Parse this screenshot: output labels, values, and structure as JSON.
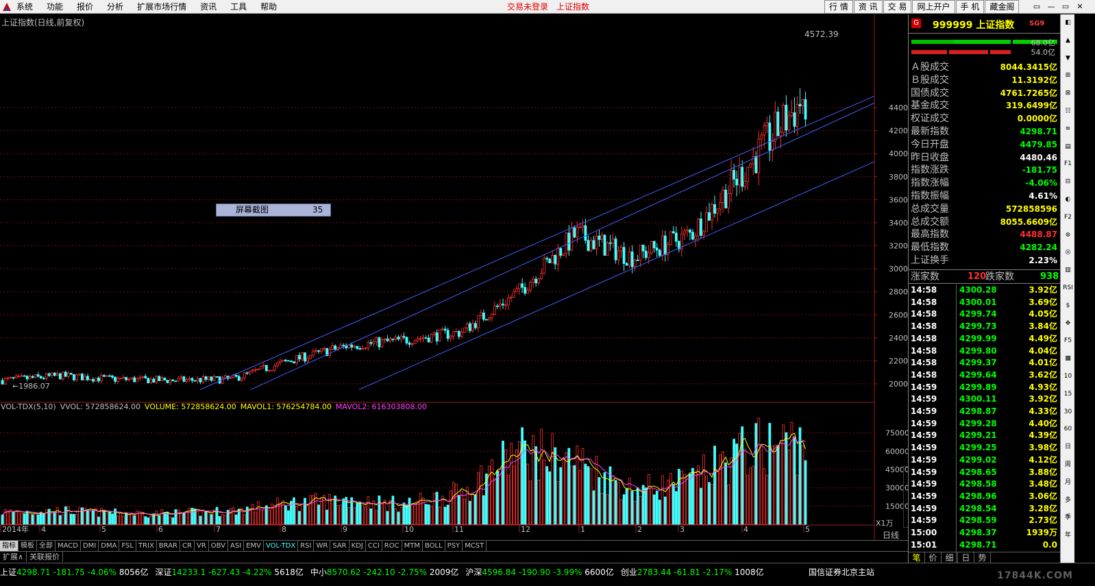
{
  "menubar": {
    "items": [
      "系统",
      "功能",
      "报价",
      "分析",
      "扩展市场行情",
      "资讯",
      "工具",
      "帮助"
    ],
    "status": [
      "交易未登录",
      "上证指数"
    ],
    "right_tabs": [
      "行 情",
      "资 讯",
      "交 易",
      "网上开户",
      "手 机",
      "藏金阁"
    ],
    "window_controls": [
      "▭",
      "—",
      "▭",
      "✕"
    ]
  },
  "chart": {
    "title": "上证指数(日线,前复权)",
    "peak_label": "4572.39",
    "low_label": "1986.07",
    "screenshot_tip": {
      "label": "屏幕截图",
      "count": "35"
    },
    "x_unit": "X1万",
    "period": "日线",
    "up_color": "#ff3030",
    "down_color": "#40ffff",
    "channel_color": "#4060ff"
  },
  "volume_header": {
    "name": "VOL-TDX(5,10)",
    "vvol": "VVOL: 572858624.00",
    "volume": "VOLUME: 572858624.00",
    "mavol1": "MAVOL1: 576254784.00",
    "mavol2": "MAVOL2: 616303808.00"
  },
  "chart_data": {
    "type": "candlestick",
    "price_axis": {
      "ticks": [
        2000,
        2200,
        2400,
        2600,
        2800,
        3000,
        3200,
        3400,
        3600,
        3800,
        4000,
        4200,
        4400
      ]
    },
    "volume_axis": {
      "ticks": [
        15000,
        30000,
        45000,
        60000,
        75000
      ]
    },
    "x_labels": [
      "2014年",
      "4",
      "5",
      "6",
      "7",
      "8",
      "9",
      "10",
      "11",
      "12",
      "1",
      "2",
      "3",
      "4",
      "5"
    ],
    "price_anchors": [
      [
        "2014年",
        2030
      ],
      [
        "4",
        2070
      ],
      [
        "5",
        2040
      ],
      [
        "6",
        2030
      ],
      [
        "7",
        2040
      ],
      [
        "8",
        2200
      ],
      [
        "9",
        2330
      ],
      [
        "10",
        2380
      ],
      [
        "11",
        2450
      ],
      [
        "12",
        2800
      ],
      [
        "1",
        3300
      ],
      [
        "2",
        3100
      ],
      [
        "3",
        3300
      ],
      [
        "4",
        3900
      ],
      [
        "5",
        4500
      ]
    ],
    "volume_anchors": [
      [
        "2014年",
        10000
      ],
      [
        "4",
        11000
      ],
      [
        "5",
        9000
      ],
      [
        "6",
        9000
      ],
      [
        "7",
        11000
      ],
      [
        "8",
        17000
      ],
      [
        "9",
        20000
      ],
      [
        "10",
        16000
      ],
      [
        "11",
        26000
      ],
      [
        "12",
        60000
      ],
      [
        "1",
        52000
      ],
      [
        "2",
        28000
      ],
      [
        "3",
        35000
      ],
      [
        "4",
        62000
      ],
      [
        "5",
        68000
      ]
    ]
  },
  "indicator_tabs": [
    "指标",
    "模板",
    "全部",
    "MACD",
    "DMI",
    "DMA",
    "FSL",
    "TRIX",
    "BRAR",
    "CR",
    "VR",
    "OBV",
    "ASI",
    "EMV",
    "VOL-TDX",
    "RSI",
    "WR",
    "SAR",
    "KDJ",
    "CCI",
    "ROC",
    "MTM",
    "BOLL",
    "PSY",
    "MCST"
  ],
  "ext_tabs": [
    "扩展∧",
    "关联报价"
  ],
  "quote_panel": {
    "badge": "G",
    "code_name": "999999 上证指数",
    "sg": "SG9",
    "bar1_value": "68.0亿",
    "bar2_value": "54.0亿",
    "rows": [
      {
        "k": "Ａ股成交",
        "v": "8044.3415亿",
        "c": "#ffff00"
      },
      {
        "k": "Ｂ股成交",
        "v": "11.3192亿",
        "c": "#ffff00"
      },
      {
        "k": "国债成交",
        "v": "4761.7265亿",
        "c": "#ffff00"
      },
      {
        "k": "基金成交",
        "v": "319.6499亿",
        "c": "#ffff00"
      },
      {
        "k": "权证成交",
        "v": "0.0000亿",
        "c": "#ffff00"
      },
      {
        "k": "最新指数",
        "v": "4298.71",
        "c": "#00ff00"
      },
      {
        "k": "今日开盘",
        "v": "4479.85",
        "c": "#00ff00"
      },
      {
        "k": "昨日收盘",
        "v": "4480.46",
        "c": "#ffffff"
      },
      {
        "k": "指数涨跌",
        "v": "-181.75",
        "c": "#00ff00"
      },
      {
        "k": "指数涨幅",
        "v": "-4.06%",
        "c": "#00ff00"
      },
      {
        "k": "指数振幅",
        "v": "4.61%",
        "c": "#ffffff"
      },
      {
        "k": "总成交量",
        "v": "572858596",
        "c": "#ffff00"
      },
      {
        "k": "总成交额",
        "v": "8055.6609亿",
        "c": "#ffff00"
      },
      {
        "k": "最高指数",
        "v": "4488.87",
        "c": "#ff3030"
      },
      {
        "k": "最低指数",
        "v": "4282.24",
        "c": "#00ff00"
      },
      {
        "k": "上证换手",
        "v": "2.23%",
        "c": "#ffffff"
      }
    ],
    "breadth": {
      "up_label": "涨家数",
      "up": "120",
      "down_label": "跌家数",
      "down": "938"
    },
    "ticks": [
      [
        "14:58",
        "4300.28",
        "3.92亿"
      ],
      [
        "14:58",
        "4300.01",
        "3.69亿"
      ],
      [
        "14:58",
        "4299.74",
        "4.05亿"
      ],
      [
        "14:58",
        "4299.73",
        "3.84亿"
      ],
      [
        "14:58",
        "4299.99",
        "4.49亿"
      ],
      [
        "14:58",
        "4299.80",
        "4.04亿"
      ],
      [
        "14:58",
        "4299.37",
        "4.01亿"
      ],
      [
        "14:58",
        "4299.64",
        "3.62亿"
      ],
      [
        "14:59",
        "4299.89",
        "4.93亿"
      ],
      [
        "14:59",
        "4300.11",
        "3.92亿"
      ],
      [
        "14:59",
        "4298.87",
        "4.33亿"
      ],
      [
        "14:59",
        "4299.28",
        "4.40亿"
      ],
      [
        "14:59",
        "4299.21",
        "4.39亿"
      ],
      [
        "14:59",
        "4299.25",
        "3.98亿"
      ],
      [
        "14:59",
        "4299.02",
        "4.12亿"
      ],
      [
        "14:59",
        "4298.65",
        "3.88亿"
      ],
      [
        "14:59",
        "4298.58",
        "3.48亿"
      ],
      [
        "14:59",
        "4298.96",
        "3.06亿"
      ],
      [
        "14:59",
        "4298.54",
        "3.28亿"
      ],
      [
        "14:59",
        "4298.59",
        "2.73亿"
      ],
      [
        "15:00",
        "4298.37",
        "1939万"
      ],
      [
        "15:01",
        "4298.71",
        "0.0"
      ]
    ],
    "tabs": [
      "笔",
      "价",
      "细",
      "日",
      "势"
    ]
  },
  "sidebar_items": [
    "◧",
    "▲",
    "▼",
    "⊞",
    "⊠",
    "☷",
    "≋",
    "▤",
    "F1",
    "⊟",
    "◐",
    "F2",
    "⊛",
    "◎",
    "▥",
    "RSI",
    "$",
    "✥",
    "F5",
    "▩",
    "10",
    "15",
    "30",
    "60",
    "日",
    "周",
    "月",
    "多",
    "季",
    "年"
  ],
  "status_bar": {
    "items": [
      {
        "name": "上证",
        "price": "4298.71",
        "chg": "-181.75",
        "pct": "-4.06%",
        "amt": "8056亿"
      },
      {
        "name": "深证",
        "price": "14233.1",
        "chg": "-627.43",
        "pct": "-4.22%",
        "amt": "5618亿"
      },
      {
        "name": "中小",
        "price": "8570.62",
        "chg": "-242.10",
        "pct": "-2.75%",
        "amt": "2009亿"
      },
      {
        "name": "沪深",
        "price": "4596.84",
        "chg": "-190.90",
        "pct": "-3.99%",
        "amt": "6600亿"
      },
      {
        "name": "创业",
        "price": "2783.44",
        "chg": "-61.81",
        "pct": "-2.17%",
        "amt": "1008亿"
      }
    ],
    "server": "国信证券北京主站",
    "watermark": "17844K.COM"
  }
}
